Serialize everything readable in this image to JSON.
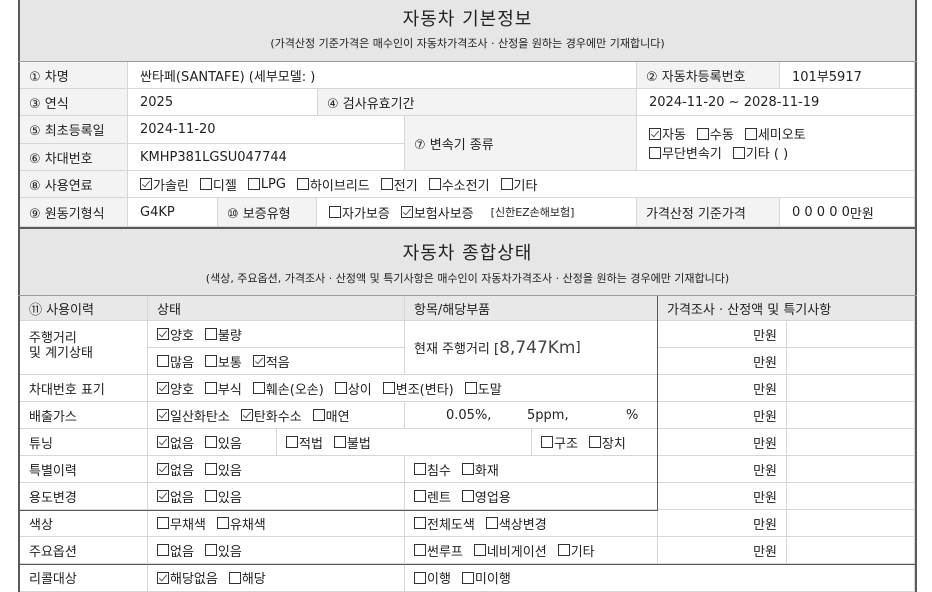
{
  "section1": {
    "title": "자동차 기본정보",
    "subtitle": "(가격산정 기준가격은 매수인이 자동차가격조사 · 산정을 원하는 경우에만 기재합니다)"
  },
  "basic": {
    "name_label": "① 차명",
    "name_value": "싼타페(SANTAFE) (세부모델: )",
    "reg_label": "② 자동차등록번호",
    "reg_value": "101부5917",
    "year_label": "③ 연식",
    "year_value": "2025",
    "inspect_label": "④ 검사유효기간",
    "inspect_value": "2024-11-20 ~ 2028-11-19",
    "firstreg_label": "⑤ 최초등록일",
    "firstreg_value": "2024-11-20",
    "vin_label": "⑥ 차대번호",
    "vin_value": "KMHP381LGSU047744",
    "trans_label": "⑦ 변속기 종류",
    "trans_line1": [
      {
        "label": "자동",
        "checked": true
      },
      {
        "label": "수동",
        "checked": false
      },
      {
        "label": "세미오토",
        "checked": false
      }
    ],
    "trans_line2": [
      {
        "label": "무단변속기",
        "checked": false
      },
      {
        "label": "기타 (       )",
        "checked": false
      }
    ],
    "fuel_label": "⑧ 사용연료",
    "fuel": [
      {
        "label": "가솔린",
        "checked": true
      },
      {
        "label": "디젤",
        "checked": false
      },
      {
        "label": "LPG",
        "checked": false
      },
      {
        "label": "하이브리드",
        "checked": false
      },
      {
        "label": "전기",
        "checked": false
      },
      {
        "label": "수소전기",
        "checked": false
      },
      {
        "label": "기타",
        "checked": false
      }
    ],
    "engine_label": "⑨ 원동기형식",
    "engine_value": "G4KP",
    "warranty_label": "⑩ 보증유형",
    "warranty": [
      {
        "label": "자가보증",
        "checked": false
      },
      {
        "label": "보험사보증",
        "checked": true
      }
    ],
    "warranty_insurer": "[신한EZ손해보험]",
    "base_price_label": "가격산정 기준가격",
    "base_price_value": "0 0 0 0 0",
    "base_price_unit": "만원"
  },
  "section2": {
    "title": "자동차 종합상태",
    "subtitle": "(색상, 주요옵션, 가격조사 · 산정액 및 특기사항은 매수인이 자동차가격조사 · 산정을 원하는 경우에만 기재합니다)"
  },
  "history": {
    "headers": [
      "⑪ 사용이력",
      "상태",
      "항목/해당부품",
      "가격조사 · 산정액 및 특기사항"
    ],
    "price_unit": "만원",
    "mileage": {
      "label": "주행거리\n및 계기상태",
      "state1": [
        {
          "label": "양호",
          "checked": true
        },
        {
          "label": "불량",
          "checked": false
        }
      ],
      "state2": [
        {
          "label": "많음",
          "checked": false
        },
        {
          "label": "보통",
          "checked": false
        },
        {
          "label": "적음",
          "checked": true
        }
      ],
      "item_prefix": "현재 주행거리 [",
      "item_value": "8,747Km",
      "item_suffix": " ]"
    },
    "vinmark": {
      "label": "차대번호 표기",
      "state": [
        {
          "label": "양호",
          "checked": true
        },
        {
          "label": "부식",
          "checked": false
        },
        {
          "label": "훼손(오손)",
          "checked": false
        },
        {
          "label": "상이",
          "checked": false
        },
        {
          "label": "변조(변타)",
          "checked": false
        },
        {
          "label": "도말",
          "checked": false
        }
      ]
    },
    "emission": {
      "label": "배출가스",
      "state": [
        {
          "label": "일산화탄소",
          "checked": true
        },
        {
          "label": "탄화수소",
          "checked": true
        },
        {
          "label": "매연",
          "checked": false
        }
      ],
      "co": "0.05%,",
      "hc": "5ppm,",
      "smoke": "%"
    },
    "tuning": {
      "label": "튜닝",
      "state": [
        {
          "label": "없음",
          "checked": true
        },
        {
          "label": "있음",
          "checked": false
        }
      ],
      "legal": [
        {
          "label": "적법",
          "checked": false
        },
        {
          "label": "불법",
          "checked": false
        }
      ],
      "kind": [
        {
          "label": "구조",
          "checked": false
        },
        {
          "label": "장치",
          "checked": false
        }
      ]
    },
    "special": {
      "label": "특별이력",
      "state": [
        {
          "label": "없음",
          "checked": true
        },
        {
          "label": "있음",
          "checked": false
        }
      ],
      "items": [
        {
          "label": "침수",
          "checked": false
        },
        {
          "label": "화재",
          "checked": false
        }
      ]
    },
    "usage": {
      "label": "용도변경",
      "state": [
        {
          "label": "없음",
          "checked": true
        },
        {
          "label": "있음",
          "checked": false
        }
      ],
      "items": [
        {
          "label": "렌트",
          "checked": false
        },
        {
          "label": "영업용",
          "checked": false
        }
      ]
    },
    "color": {
      "label": "색상",
      "state": [
        {
          "label": "무채색",
          "checked": false
        },
        {
          "label": "유채색",
          "checked": false
        }
      ],
      "items": [
        {
          "label": "전체도색",
          "checked": false
        },
        {
          "label": "색상변경",
          "checked": false
        }
      ]
    },
    "options": {
      "label": "주요옵션",
      "state": [
        {
          "label": "없음",
          "checked": false
        },
        {
          "label": "있음",
          "checked": false
        }
      ],
      "items": [
        {
          "label": "썬루프",
          "checked": false
        },
        {
          "label": "네비게이션",
          "checked": false
        },
        {
          "label": "기타",
          "checked": false
        }
      ]
    },
    "recall": {
      "label": "리콜대상",
      "state": [
        {
          "label": "해당없음",
          "checked": true
        },
        {
          "label": "해당",
          "checked": false
        }
      ],
      "items": [
        {
          "label": "이행",
          "checked": false
        },
        {
          "label": "미이행",
          "checked": false
        }
      ]
    }
  }
}
